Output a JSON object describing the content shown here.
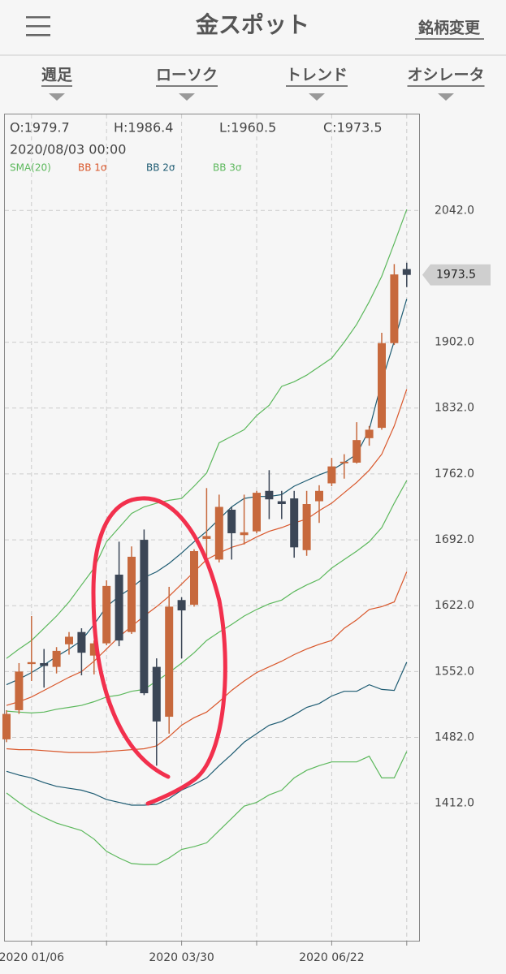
{
  "header": {
    "title": "金スポット",
    "action": "銘柄変更"
  },
  "tabs": [
    "週足",
    "ローソク",
    "トレンド",
    "オシレータ"
  ],
  "info": {
    "ohlc": [
      "O:1979.7",
      "H:1986.4",
      "L:1960.5",
      "C:1973.5"
    ],
    "datetime": "2020/08/03 00:00"
  },
  "chart_data": {
    "type": "candlestick",
    "categories": [
      null,
      null,
      "2020 01/06",
      null,
      null,
      null,
      null,
      null,
      null,
      null,
      null,
      null,
      null,
      null,
      "2020 03/30",
      null,
      null,
      null,
      null,
      null,
      null,
      null,
      null,
      null,
      null,
      null,
      "2020 06/22",
      null,
      null,
      null,
      null,
      null,
      null
    ],
    "open": [
      1480,
      1511,
      1560,
      1561,
      1557,
      1581,
      1594,
      1569,
      1582,
      1655,
      1594,
      1692,
      1557,
      1504,
      1628,
      1623,
      1693,
      1671,
      1724,
      1697,
      1701,
      1744,
      1733,
      1736,
      1681,
      1733,
      1752,
      1774,
      1774,
      1800,
      1811,
      1901,
      1979.7
    ],
    "high": [
      1511,
      1561,
      1611,
      1576,
      1578,
      1594,
      1598,
      1585,
      1649,
      1690,
      1685,
      1703,
      1566,
      1642,
      1631,
      1682,
      1747,
      1740,
      1727,
      1740,
      1744,
      1766,
      1744,
      1744,
      1744,
      1750,
      1779,
      1783,
      1817,
      1813,
      1912,
      1985,
      1986.4
    ],
    "low": [
      1477,
      1507,
      1542,
      1535,
      1550,
      1570,
      1548,
      1549,
      1580,
      1579,
      1592,
      1527,
      1452,
      1486,
      1566,
      1621,
      1671,
      1668,
      1671,
      1687,
      1699,
      1714,
      1714,
      1673,
      1675,
      1710,
      1749,
      1757,
      1773,
      1792,
      1809,
      1899,
      1960.5
    ],
    "close": [
      1507,
      1552,
      1562,
      1558,
      1574,
      1589,
      1572,
      1582,
      1643,
      1585,
      1674,
      1529,
      1499,
      1621,
      1617,
      1680,
      1696,
      1727,
      1699,
      1700,
      1742,
      1735,
      1730,
      1684,
      1730,
      1744,
      1770,
      1775,
      1798,
      1809,
      1901,
      1974,
      1973.5
    ],
    "up_color": "#c7693d",
    "down_color": "#3b4656",
    "overlays": [
      {
        "name": "SMA(20)",
        "color": "#5cb85c",
        "lines": [
          [
            1510,
            1509,
            1508,
            1509,
            1512,
            1514,
            1516,
            1520,
            1525,
            1527,
            1531,
            1533,
            1542,
            1551,
            1561,
            1572,
            1585,
            1594,
            1602,
            1611,
            1618,
            1624,
            1628,
            1637,
            1644,
            1650,
            1662,
            1671,
            1680,
            1690,
            1705,
            1731,
            1755
          ]
        ]
      },
      {
        "name": "BB 1σ",
        "color": "#d9572b",
        "lines": [
          [
            1516,
            1520,
            1525,
            1532,
            1539,
            1546,
            1552,
            1563,
            1576,
            1589,
            1600,
            1611,
            1621,
            1632,
            1645,
            1658,
            1671,
            1678,
            1684,
            1688,
            1695,
            1701,
            1705,
            1710,
            1714,
            1723,
            1731,
            1742,
            1753,
            1766,
            1783,
            1813,
            1852
          ],
          [
            1470,
            1469,
            1469,
            1468,
            1467,
            1466,
            1466,
            1466,
            1467,
            1468,
            1469,
            1470,
            1473,
            1483,
            1495,
            1503,
            1509,
            1520,
            1532,
            1542,
            1551,
            1557,
            1563,
            1570,
            1576,
            1581,
            1585,
            1598,
            1607,
            1618,
            1621,
            1626,
            1658
          ]
        ]
      },
      {
        "name": "BB 2σ",
        "color": "#1d5b72",
        "lines": [
          [
            1538,
            1544,
            1551,
            1559,
            1568,
            1576,
            1585,
            1602,
            1621,
            1632,
            1641,
            1652,
            1658,
            1667,
            1678,
            1690,
            1701,
            1714,
            1727,
            1736,
            1738,
            1738,
            1740,
            1749,
            1755,
            1761,
            1766,
            1774,
            1783,
            1809,
            1860,
            1903,
            1948
          ],
          [
            1446,
            1442,
            1439,
            1434,
            1430,
            1428,
            1426,
            1422,
            1416,
            1413,
            1410,
            1410,
            1411,
            1417,
            1426,
            1432,
            1439,
            1452,
            1464,
            1477,
            1486,
            1495,
            1499,
            1506,
            1514,
            1518,
            1526,
            1531,
            1531,
            1538,
            1533,
            1532,
            1562
          ]
        ]
      },
      {
        "name": "BB 3σ",
        "color": "#5cb85c",
        "lines": [
          [
            1566,
            1576,
            1585,
            1598,
            1611,
            1626,
            1644,
            1662,
            1690,
            1705,
            1720,
            1727,
            1731,
            1734,
            1736,
            1749,
            1763,
            1795,
            1802,
            1809,
            1824,
            1835,
            1855,
            1860,
            1867,
            1876,
            1885,
            1902,
            1921,
            1945,
            1972,
            2007,
            2043
          ],
          [
            1423,
            1413,
            1404,
            1397,
            1391,
            1387,
            1383,
            1374,
            1361,
            1354,
            1348,
            1347,
            1347,
            1354,
            1363,
            1366,
            1370,
            1383,
            1396,
            1409,
            1413,
            1421,
            1426,
            1439,
            1447,
            1452,
            1456,
            1456,
            1456,
            1462,
            1439,
            1439,
            1467
          ]
        ]
      }
    ],
    "ylim": [
      1266,
      2144
    ],
    "yticks": [
      {
        "value": 1412,
        "label": "1412.0"
      },
      {
        "value": 1482,
        "label": "1482.0"
      },
      {
        "value": 1552,
        "label": "1552.0"
      },
      {
        "value": 1622,
        "label": "1622.0"
      },
      {
        "value": 1692,
        "label": "1692.0"
      },
      {
        "value": 1762,
        "label": "1762.0"
      },
      {
        "value": 1832,
        "label": "1832.0"
      },
      {
        "value": 1902,
        "label": "1902.0"
      },
      {
        "value": 2042,
        "label": "2042.0"
      }
    ],
    "grid": true
  }
}
